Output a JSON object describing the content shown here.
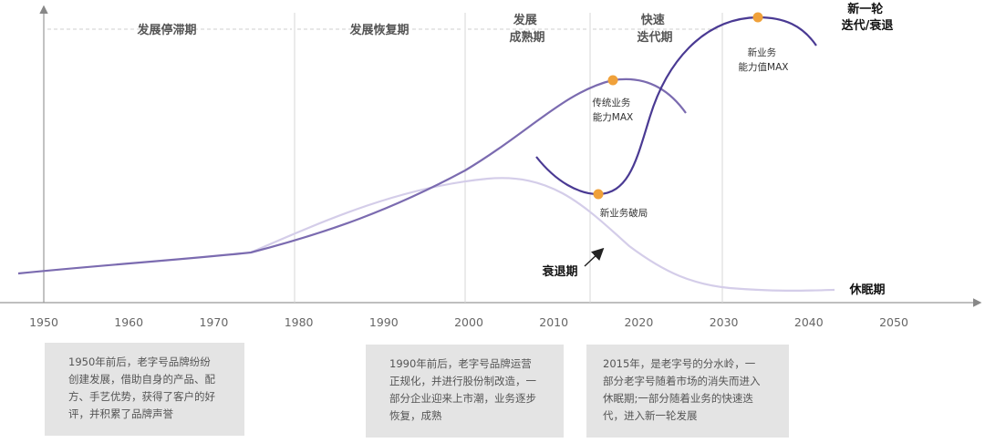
{
  "phases": [
    {
      "lines": [
        "发展停滞期"
      ]
    },
    {
      "lines": [
        "发展恢复期"
      ]
    },
    {
      "lines": [
        "发展",
        "成熟期"
      ]
    },
    {
      "lines": [
        "快速",
        "迭代期"
      ]
    },
    {
      "lines": [
        "新一轮",
        "迭代/衰退"
      ]
    }
  ],
  "axis": {
    "ticks": [
      "1950",
      "1960",
      "1970",
      "1980",
      "1990",
      "2000",
      "2010",
      "2020",
      "2030",
      "2040",
      "2050"
    ]
  },
  "curve_labels": {
    "traditional_max": [
      "传统业务",
      "能力MAX"
    ],
    "new_max": [
      "新业务",
      "能力值MAX"
    ],
    "breakthrough": "新业务破局",
    "decline": "衰退期",
    "dormant": "休眠期"
  },
  "colors": {
    "main_curve": "#7b6bb0",
    "new_curve": "#4a3a93",
    "faded_curve": "#d4cde9",
    "marker": "#f0a13a",
    "divider": "#d7d7d7",
    "note_bg": "#e4e4e4"
  },
  "notes": [
    {
      "lines": [
        "1950年前后，老字号品牌纷纷",
        "创建发展，借助自身的产品、配",
        "方、手艺优势，获得了客户的好",
        "评，并积累了品牌声誉"
      ]
    },
    {
      "lines": [
        "1990年前后，老字号品牌运营",
        "正规化，并进行股份制改造，一",
        "部分企业迎来上市潮，业务逐步",
        "恢复，成熟"
      ]
    },
    {
      "lines": [
        "2015年，是老字号的分水岭，一",
        "部分老字号随着市场的消失而进入",
        "休眠期;一部分随着业务的快速迭",
        "代，进入新一轮发展"
      ]
    }
  ]
}
